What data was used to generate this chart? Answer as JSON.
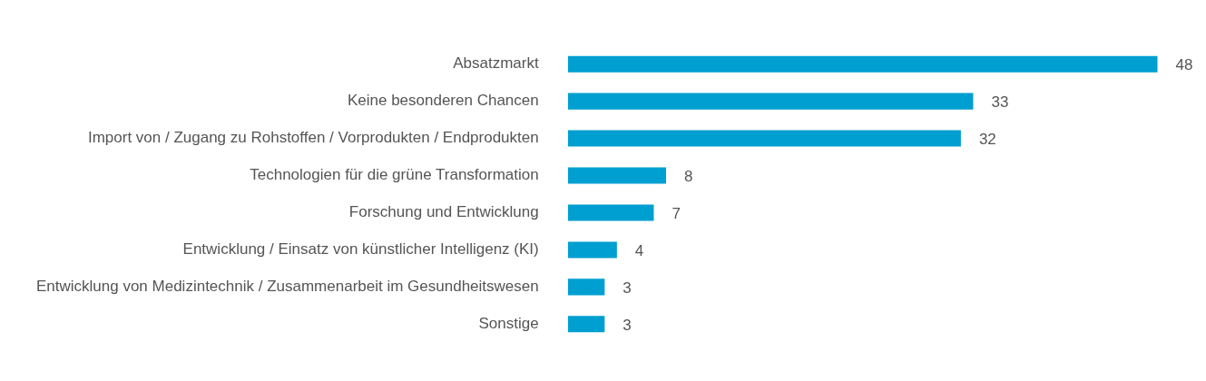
{
  "chart_data": {
    "type": "bar",
    "orientation": "horizontal",
    "categories": [
      "Absatzmarkt",
      "Keine besonderen Chancen",
      "Import von / Zugang zu Rohstoffen / Vorprodukten / Endprodukten",
      "Technologien für die grüne Transformation",
      "Forschung und Entwicklung",
      "Entwicklung / Einsatz von künstlicher Intelligenz (KI)",
      "Entwicklung von Medizintechnik / Zusammenarbeit im Gesundheitswesen",
      "Sonstige"
    ],
    "values": [
      48,
      33,
      32,
      8,
      7,
      4,
      3,
      3
    ],
    "color": "#009fd1",
    "data_labels": true,
    "legend": false
  }
}
